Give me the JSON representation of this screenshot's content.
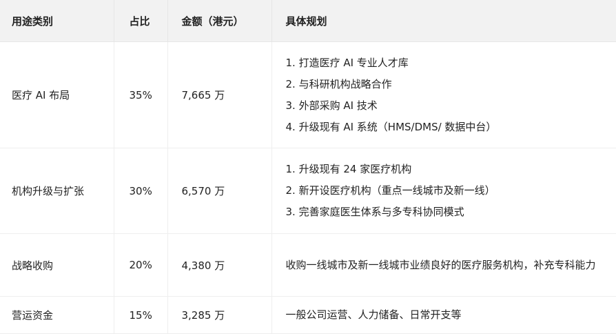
{
  "headers": [
    "用途类别",
    "占比",
    "金额（港元）",
    "具体规划"
  ],
  "rows": [
    {
      "category": "医疗 AI 布局",
      "share": "35%",
      "amount": "7,665 万",
      "plan": [
        "1. 打造医疗 AI 专业人才库",
        "2. 与科研机构战略合作",
        "3. 外部采购 AI 技术",
        "4. 升级现有 AI 系统（HMS/DMS/ 数据中台）"
      ]
    },
    {
      "category": "机构升级与扩张",
      "share": "30%",
      "amount": "6,570 万",
      "plan": [
        "1. 升级现有 24 家医疗机构",
        "2. 新开设医疗机构（重点一线城市及新一线）",
        "3. 完善家庭医生体系与多专科协同模式"
      ]
    },
    {
      "category": "战略收购",
      "share": "20%",
      "amount": "4,380 万",
      "plan": [
        "收购一线城市及新一线城市业绩良好的医疗服务机构，补充专科能力"
      ]
    },
    {
      "category": "营运资金",
      "share": "15%",
      "amount": "3,285 万",
      "plan": [
        "一般公司运营、人力储备、日常开支等"
      ]
    }
  ]
}
